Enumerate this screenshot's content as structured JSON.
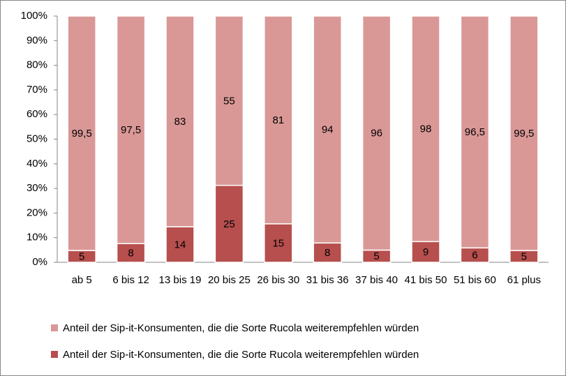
{
  "chart_data": {
    "type": "bar",
    "stacking": "percent",
    "categories": [
      "ab 5",
      "6 bis 12",
      "13 bis 19",
      "20 bis 25",
      "26 bis 30",
      "31 bis 36",
      "37 bis 40",
      "41 bis 50",
      "51 bis 60",
      "61 plus"
    ],
    "series": [
      {
        "name": "Anteil der Sip-it-Konsumenten, die die Sorte Rucola weiterempfehlen würden",
        "color": "#b64f4d",
        "values": [
          5,
          8,
          14,
          25,
          15,
          8,
          5,
          9,
          6,
          5
        ]
      },
      {
        "name": "Anteil der Sip-it-Konsumenten, die die Sorte Rucola weiterempfehlen würden",
        "color": "#d99896",
        "values": [
          99.5,
          97.5,
          83,
          55,
          81,
          94,
          96,
          98,
          96.5,
          99.5
        ],
        "value_labels": [
          "99,5",
          "97,5",
          "83",
          "55",
          "81",
          "94",
          "96",
          "98",
          "96,5",
          "99,5"
        ]
      }
    ],
    "ylim": [
      0,
      100
    ],
    "yticks": [
      {
        "value": 0,
        "label": "0%"
      },
      {
        "value": 10,
        "label": "10%"
      },
      {
        "value": 20,
        "label": "20%"
      },
      {
        "value": 30,
        "label": "30%"
      },
      {
        "value": 40,
        "label": "40%"
      },
      {
        "value": 50,
        "label": "50%"
      },
      {
        "value": 60,
        "label": "60%"
      },
      {
        "value": 70,
        "label": "70%"
      },
      {
        "value": 80,
        "label": "80%"
      },
      {
        "value": 90,
        "label": "90%"
      },
      {
        "value": 100,
        "label": "100%"
      }
    ]
  }
}
